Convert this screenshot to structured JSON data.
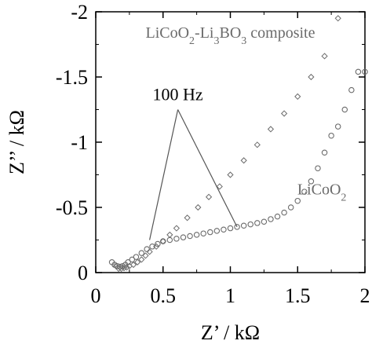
{
  "chart_data": {
    "type": "scatter",
    "xlabel": "Z’ / kΩ",
    "ylabel": "Z’’ / kΩ",
    "xlim": [
      0,
      2
    ],
    "ylim": [
      0,
      -2
    ],
    "x_ticks": [
      "0",
      "0.5",
      "1",
      "1.5",
      "2"
    ],
    "y_ticks": [
      "0",
      "-0.5",
      "-1",
      "-1.5",
      "-2"
    ],
    "grid": false,
    "series": [
      {
        "name": "LiCoO₂",
        "marker": "circle",
        "color": "#6b6b6b",
        "x": [
          0.12,
          0.14,
          0.16,
          0.18,
          0.2,
          0.22,
          0.24,
          0.27,
          0.3,
          0.34,
          0.38,
          0.42,
          0.46,
          0.5,
          0.55,
          0.6,
          0.65,
          0.7,
          0.75,
          0.8,
          0.85,
          0.9,
          0.95,
          1.0,
          1.05,
          1.1,
          1.15,
          1.2,
          1.25,
          1.3,
          1.35,
          1.4,
          1.45,
          1.5,
          1.55,
          1.6,
          1.65,
          1.7,
          1.75,
          1.8,
          1.85,
          1.9,
          1.95,
          2.0
        ],
        "y": [
          -0.08,
          -0.06,
          -0.05,
          -0.045,
          -0.05,
          -0.06,
          -0.08,
          -0.1,
          -0.12,
          -0.15,
          -0.18,
          -0.2,
          -0.22,
          -0.24,
          -0.25,
          -0.26,
          -0.27,
          -0.28,
          -0.29,
          -0.3,
          -0.31,
          -0.32,
          -0.33,
          -0.34,
          -0.35,
          -0.36,
          -0.37,
          -0.38,
          -0.39,
          -0.41,
          -0.43,
          -0.46,
          -0.5,
          -0.55,
          -0.62,
          -0.7,
          -0.8,
          -0.92,
          -1.05,
          -1.12,
          -1.25,
          -1.4,
          -1.54,
          -1.54
        ]
      },
      {
        "name": "LiCoO₂-Li₃BO₃ composite",
        "marker": "diamond",
        "color": "#6b6b6b",
        "x": [
          0.15,
          0.17,
          0.19,
          0.21,
          0.23,
          0.25,
          0.28,
          0.31,
          0.34,
          0.37,
          0.4,
          0.45,
          0.5,
          0.55,
          0.6,
          0.68,
          0.76,
          0.84,
          0.92,
          1.0,
          1.1,
          1.2,
          1.3,
          1.4,
          1.5,
          1.6,
          1.7,
          1.8
        ],
        "y": [
          -0.05,
          -0.03,
          -0.03,
          -0.035,
          -0.04,
          -0.05,
          -0.06,
          -0.08,
          -0.1,
          -0.13,
          -0.16,
          -0.2,
          -0.24,
          -0.29,
          -0.34,
          -0.42,
          -0.5,
          -0.58,
          -0.66,
          -0.75,
          -0.86,
          -0.98,
          -1.1,
          -1.22,
          -1.35,
          -1.5,
          -1.66,
          -1.95
        ]
      }
    ],
    "annotation": {
      "text": "100 Hz",
      "points": [
        {
          "x": 0.4,
          "y": -0.25
        },
        {
          "x": 1.05,
          "y": -0.35
        }
      ],
      "apex": {
        "x": 0.61,
        "y": -1.25
      }
    },
    "series_labels": [
      {
        "series": 1,
        "text_parts": [
          "LiCoO",
          "2",
          "-Li",
          "3",
          "BO",
          "3",
          " composite"
        ],
        "x": 1.0,
        "y": -1.8
      },
      {
        "series": 0,
        "text_parts": [
          "LiCoO",
          "2"
        ],
        "x": 1.68,
        "y": -0.6
      }
    ]
  }
}
